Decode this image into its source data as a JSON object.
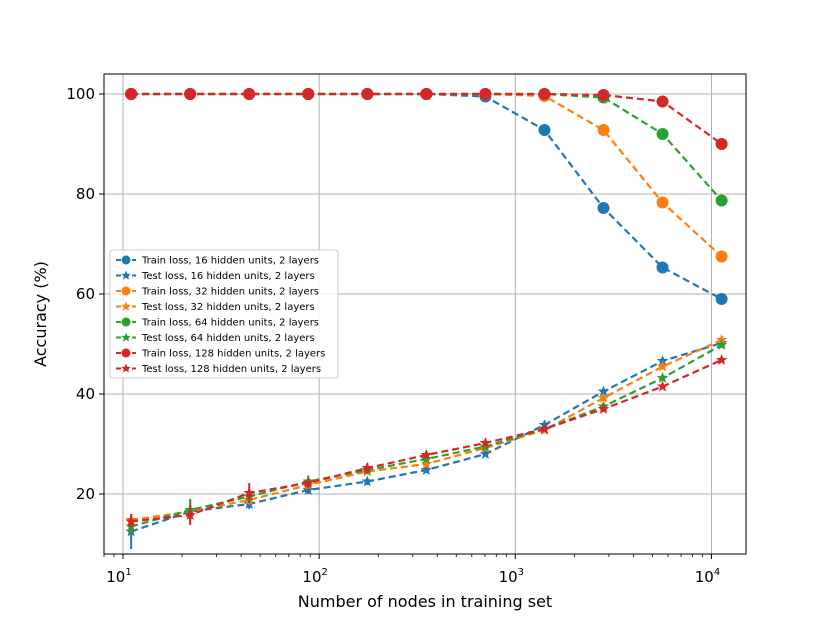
{
  "chart_data": {
    "type": "line",
    "title": "",
    "xlabel": "Number of nodes in training set",
    "ylabel": "Accuracy (%)",
    "xscale": "log",
    "xlim": [
      8,
      15000
    ],
    "ylim": [
      8,
      104
    ],
    "grid": true,
    "legend_position": "center-left",
    "x": [
      11,
      22,
      44,
      88,
      176,
      352,
      704,
      1408,
      2816,
      5632,
      11264
    ],
    "x_ticks": [
      {
        "value": 10,
        "base": "10",
        "exp": "1"
      },
      {
        "value": 100,
        "base": "10",
        "exp": "2"
      },
      {
        "value": 1000,
        "base": "10",
        "exp": "3"
      },
      {
        "value": 10000,
        "base": "10",
        "exp": "4"
      }
    ],
    "y_ticks": [
      20,
      40,
      60,
      80,
      100
    ],
    "series": [
      {
        "name": "Train loss, 16 hidden units, 2 layers",
        "color": "#1f77b4",
        "marker": "circle",
        "values": [
          100,
          100,
          100,
          100,
          100,
          100,
          99.5,
          92.8,
          77.2,
          65.3,
          59.0
        ],
        "errors": [
          0,
          0,
          0,
          0,
          0,
          0,
          0,
          0,
          0,
          0,
          0
        ]
      },
      {
        "name": "Test loss, 16 hidden units, 2 layers",
        "color": "#1f77b4",
        "marker": "star",
        "values": [
          12.5,
          16.5,
          18.0,
          20.8,
          22.5,
          24.8,
          28.0,
          33.8,
          40.5,
          46.6,
          50.2
        ],
        "errors": [
          3.5,
          2.2,
          1.0,
          0.8,
          0.7,
          0.5,
          0.5,
          0.5,
          0.5,
          0.5,
          0.4
        ]
      },
      {
        "name": "Train loss, 32 hidden units, 2 layers",
        "color": "#ff7f0e",
        "marker": "circle",
        "values": [
          100,
          100,
          100,
          100,
          100,
          100,
          100,
          99.6,
          92.8,
          78.3,
          67.5
        ],
        "errors": [
          0,
          0,
          0,
          0,
          0,
          0,
          0,
          0,
          0,
          0,
          0
        ]
      },
      {
        "name": "Test loss, 32 hidden units, 2 layers",
        "color": "#ff7f0e",
        "marker": "star",
        "values": [
          14.8,
          16.5,
          18.8,
          21.8,
          24.5,
          26.0,
          29.2,
          32.8,
          39.2,
          45.5,
          50.8
        ],
        "errors": [
          1.2,
          1.2,
          0.9,
          0.7,
          0.6,
          0.5,
          0.4,
          0.4,
          0.4,
          0.4,
          0.4
        ]
      },
      {
        "name": "Train loss, 64 hidden units, 2 layers",
        "color": "#2ca02c",
        "marker": "circle",
        "values": [
          100,
          100,
          100,
          100,
          100,
          100,
          100,
          100,
          99.3,
          92.0,
          78.7
        ],
        "errors": [
          0,
          0,
          0,
          0,
          0,
          0,
          0,
          0,
          0,
          0,
          0
        ]
      },
      {
        "name": "Test loss, 64 hidden units, 2 layers",
        "color": "#2ca02c",
        "marker": "star",
        "values": [
          13.5,
          16.8,
          19.5,
          22.5,
          24.8,
          27.0,
          29.5,
          33.0,
          37.5,
          43.2,
          49.8
        ],
        "errors": [
          1.5,
          2.2,
          1.2,
          1.2,
          0.7,
          0.5,
          0.5,
          0.4,
          0.4,
          0.4,
          0.4
        ]
      },
      {
        "name": "Train loss, 128 hidden units, 2 layers",
        "color": "#d62728",
        "marker": "circle",
        "values": [
          100,
          100,
          100,
          100,
          100,
          100,
          100,
          100,
          99.8,
          98.5,
          90.0
        ],
        "errors": [
          0,
          0,
          0,
          0,
          0,
          0,
          0,
          0,
          0,
          0,
          0
        ]
      },
      {
        "name": "Test loss, 128 hidden units, 2 layers",
        "color": "#d62728",
        "marker": "star",
        "values": [
          14.5,
          15.8,
          20.2,
          22.2,
          25.2,
          27.8,
          30.2,
          33.0,
          37.0,
          41.5,
          46.8
        ],
        "errors": [
          1.5,
          2.0,
          2.0,
          1.0,
          1.0,
          0.6,
          0.5,
          0.4,
          0.4,
          0.4,
          0.4
        ]
      }
    ]
  }
}
